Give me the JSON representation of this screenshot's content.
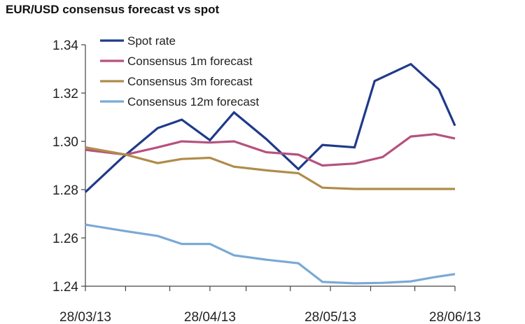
{
  "chart_data": {
    "type": "line",
    "title": "EUR/USD consensus forecast vs spot",
    "xlabel": "",
    "ylabel": "",
    "ylim": [
      1.24,
      1.34
    ],
    "y_ticks": [
      "1.24",
      "1.26",
      "1.28",
      "1.30",
      "1.32",
      "1.34"
    ],
    "x_ticks": [
      "28/03/13",
      "28/04/13",
      "28/05/13",
      "28/06/13"
    ],
    "x": [
      "28/03/13",
      "07/04/13",
      "18/04/13",
      "28/04/13",
      "07/05/13",
      "18/05/13",
      "28/05/13",
      "07/06/13",
      "18/06/13",
      "28/06/13"
    ],
    "legend_position": "top-left",
    "grid": false,
    "series": [
      {
        "name": "Spot rate",
        "color": "#1f3a8a",
        "points": [
          [
            "28/03/13",
            1.279
          ],
          [
            "06/04/13",
            1.293
          ],
          [
            "15/04/13",
            1.3055
          ],
          [
            "21/04/13",
            1.309
          ],
          [
            "28/04/13",
            1.3005
          ],
          [
            "04/05/13",
            1.312
          ],
          [
            "12/05/13",
            1.301
          ],
          [
            "20/05/13",
            1.2885
          ],
          [
            "26/05/13",
            1.2985
          ],
          [
            "03/06/13",
            1.2975
          ],
          [
            "08/06/13",
            1.325
          ],
          [
            "17/06/13",
            1.332
          ],
          [
            "24/06/13",
            1.3215
          ],
          [
            "28/06/13",
            1.3065
          ]
        ]
      },
      {
        "name": "Consensus 1m forecast",
        "color": "#b5527e",
        "points": [
          [
            "28/03/13",
            1.2965
          ],
          [
            "07/04/13",
            1.2945
          ],
          [
            "15/04/13",
            1.2975
          ],
          [
            "21/04/13",
            1.3
          ],
          [
            "28/04/13",
            1.2995
          ],
          [
            "04/05/13",
            1.3
          ],
          [
            "12/05/13",
            1.2955
          ],
          [
            "20/05/13",
            1.2945
          ],
          [
            "26/05/13",
            1.29
          ],
          [
            "03/06/13",
            1.2908
          ],
          [
            "10/06/13",
            1.2935
          ],
          [
            "17/06/13",
            1.302
          ],
          [
            "23/06/13",
            1.303
          ],
          [
            "28/06/13",
            1.3012
          ]
        ]
      },
      {
        "name": "Consensus 3m forecast",
        "color": "#b08c4a",
        "points": [
          [
            "28/03/13",
            1.2975
          ],
          [
            "07/04/13",
            1.2945
          ],
          [
            "15/04/13",
            1.291
          ],
          [
            "21/04/13",
            1.2927
          ],
          [
            "28/04/13",
            1.2932
          ],
          [
            "04/05/13",
            1.2895
          ],
          [
            "12/05/13",
            1.288
          ],
          [
            "20/05/13",
            1.2868
          ],
          [
            "26/05/13",
            1.2808
          ],
          [
            "03/06/13",
            1.2803
          ],
          [
            "28/06/13",
            1.2803
          ]
        ]
      },
      {
        "name": "Consensus 12m forecast",
        "color": "#7aa9d6",
        "points": [
          [
            "28/03/13",
            1.2655
          ],
          [
            "07/04/13",
            1.2628
          ],
          [
            "15/04/13",
            1.2608
          ],
          [
            "21/04/13",
            1.2575
          ],
          [
            "28/04/13",
            1.2575
          ],
          [
            "04/05/13",
            1.2528
          ],
          [
            "12/05/13",
            1.251
          ],
          [
            "20/05/13",
            1.2495
          ],
          [
            "26/05/13",
            1.2418
          ],
          [
            "03/06/13",
            1.2412
          ],
          [
            "10/06/13",
            1.2414
          ],
          [
            "17/06/13",
            1.242
          ],
          [
            "23/06/13",
            1.2438
          ],
          [
            "28/06/13",
            1.245
          ]
        ]
      }
    ]
  }
}
